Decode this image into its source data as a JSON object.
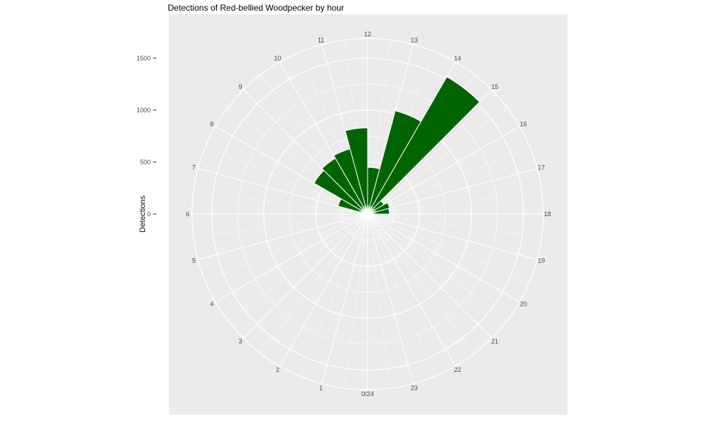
{
  "chart_data": {
    "type": "bar",
    "coordinate": "polar",
    "title": "Detections of Red-bellied Woodpecker by hour",
    "ylabel": "Detections",
    "orientation_note": "hours increase clockwise; 0/24 at bottom, 6 left, 12 top, 18 right; each bar spans from hour h to h+1",
    "hour_labels": [
      "0/24",
      "1",
      "2",
      "3",
      "4",
      "5",
      "6",
      "7",
      "8",
      "9",
      "10",
      "11",
      "12",
      "13",
      "14",
      "15",
      "16",
      "17",
      "18",
      "19",
      "20",
      "21",
      "22",
      "23"
    ],
    "hours": [
      0,
      1,
      2,
      3,
      4,
      5,
      6,
      7,
      8,
      9,
      10,
      11,
      12,
      13,
      14,
      15,
      16,
      17,
      18,
      19,
      20,
      21,
      22,
      23
    ],
    "values": [
      0,
      0,
      0,
      0,
      0,
      0,
      0,
      295,
      595,
      620,
      650,
      830,
      450,
      1030,
      1525,
      180,
      220,
      210,
      0,
      0,
      0,
      0,
      0,
      0
    ],
    "radial_ticks": [
      0,
      500,
      1000,
      1500
    ],
    "radial_minor": [
      250,
      750,
      1250
    ],
    "rlim": [
      0,
      1690
    ],
    "grid": "on",
    "legend": "none",
    "colors": {
      "bar": "#006400",
      "bar_outline": "#ffffff",
      "panel": "#EBEBEB",
      "grid": "#ffffff",
      "axis_text": "#4d4d4d",
      "tick_mark": "#333333",
      "title": "#000000"
    }
  }
}
